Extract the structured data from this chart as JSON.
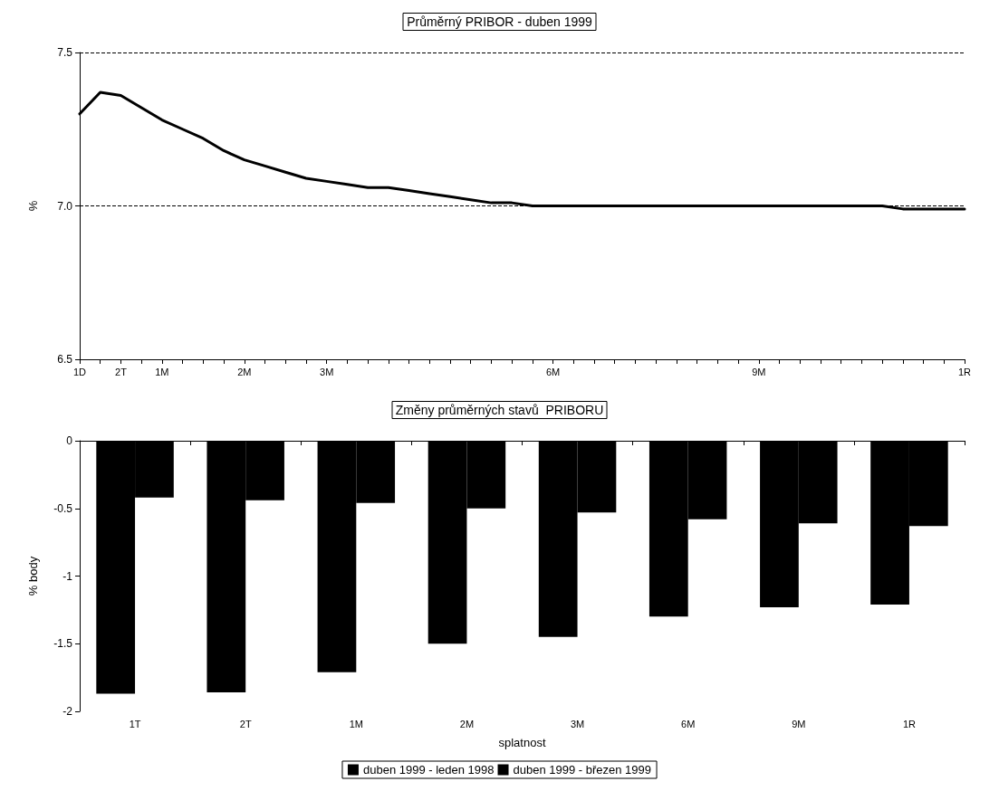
{
  "chart_data": [
    {
      "type": "line",
      "title": "Průměrný PRIBOR - duben 1999",
      "ylabel": "%",
      "categories": [
        "1D",
        null,
        "2T",
        null,
        "1M",
        null,
        null,
        null,
        "2M",
        null,
        null,
        null,
        "3M",
        null,
        null,
        null,
        null,
        null,
        null,
        null,
        null,
        null,
        null,
        "6M",
        null,
        null,
        null,
        null,
        null,
        null,
        null,
        null,
        null,
        "9M",
        null,
        null,
        null,
        null,
        null,
        null,
        null,
        null,
        null,
        "1R"
      ],
      "series": [
        {
          "color": "#000000",
          "values": [
            7.3,
            7.37,
            7.36,
            7.32,
            7.28,
            7.25,
            7.22,
            7.18,
            7.15,
            7.13,
            7.11,
            7.09,
            7.08,
            7.07,
            7.06,
            7.06,
            7.05,
            7.04,
            7.03,
            7.02,
            7.01,
            7.01,
            7.0,
            7.0,
            7.0,
            7.0,
            7.0,
            7.0,
            7.0,
            7.0,
            7.0,
            7.0,
            7.0,
            7.0,
            7.0,
            7.0,
            7.0,
            7.0,
            7.0,
            7.0,
            6.99,
            6.99,
            6.99,
            6.99
          ]
        }
      ],
      "ylim": [
        6.5,
        7.5
      ],
      "yticks": [
        6.5,
        {
          "value": 7,
          "label": "7.0"
        },
        7.5
      ],
      "grid": "y",
      "legend": false,
      "marker": "none",
      "line_style": "solid"
    },
    {
      "type": "bar",
      "title": "Změny průměrných stavů  PRIBORU",
      "xlabel": "splatnost",
      "ylabel": "% body",
      "categories": [
        "1T",
        "2T",
        "1M",
        "2M",
        "3M",
        "6M",
        "9M",
        "1R"
      ],
      "series": [
        {
          "name": "duben 1999 - leden 1998",
          "color": "#000000",
          "values": [
            -1.87,
            -1.86,
            -1.71,
            -1.5,
            -1.45,
            -1.3,
            -1.23,
            -1.21
          ]
        },
        {
          "name": "duben 1999 - březen 1999",
          "color": "#000000",
          "values": [
            -0.42,
            -0.44,
            -0.46,
            -0.5,
            -0.53,
            -0.58,
            -0.61,
            -0.63
          ]
        }
      ],
      "ylim": [
        -2,
        0
      ],
      "yticks": [
        -2,
        -1.5,
        -1,
        -0.5,
        0
      ],
      "grid": false,
      "legend": "bottom"
    }
  ]
}
